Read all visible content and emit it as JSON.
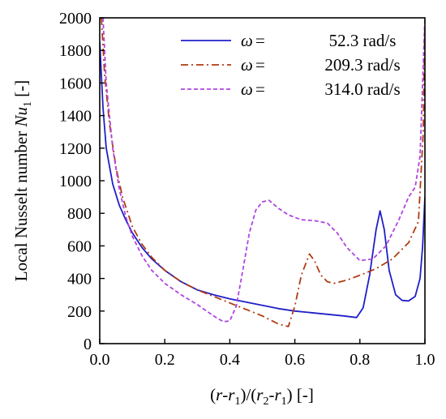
{
  "chart_data": {
    "type": "line",
    "xlabel": "(r-r1)/(r2-r1) [-]",
    "ylabel": "Local Nusselt number Nu1 [-]",
    "xlim": [
      0.0,
      1.0
    ],
    "ylim": [
      0,
      2000
    ],
    "xticks": [
      "0.0",
      "0.2",
      "0.4",
      "0.6",
      "0.8",
      "1.0"
    ],
    "yticks": [
      "0",
      "200",
      "400",
      "600",
      "800",
      "1000",
      "1200",
      "1400",
      "1600",
      "1800",
      "2000"
    ],
    "grid": false,
    "legend_position": "top-right",
    "series": [
      {
        "name": "ω = 52.3 rad/s",
        "symbol": "ω",
        "eq": "=",
        "value": "52.3 rad/s",
        "color": "#1f1fc8",
        "style": "solid",
        "points": [
          [
            0.0,
            1850
          ],
          [
            0.01,
            1450
          ],
          [
            0.02,
            1200
          ],
          [
            0.04,
            980
          ],
          [
            0.06,
            850
          ],
          [
            0.08,
            760
          ],
          [
            0.1,
            680
          ],
          [
            0.13,
            590
          ],
          [
            0.16,
            520
          ],
          [
            0.2,
            450
          ],
          [
            0.25,
            380
          ],
          [
            0.3,
            330
          ],
          [
            0.35,
            300
          ],
          [
            0.4,
            275
          ],
          [
            0.45,
            255
          ],
          [
            0.5,
            235
          ],
          [
            0.55,
            215
          ],
          [
            0.6,
            200
          ],
          [
            0.65,
            190
          ],
          [
            0.7,
            180
          ],
          [
            0.75,
            170
          ],
          [
            0.79,
            160
          ],
          [
            0.81,
            220
          ],
          [
            0.83,
            420
          ],
          [
            0.85,
            700
          ],
          [
            0.862,
            815
          ],
          [
            0.875,
            700
          ],
          [
            0.89,
            450
          ],
          [
            0.91,
            300
          ],
          [
            0.93,
            265
          ],
          [
            0.95,
            262
          ],
          [
            0.97,
            290
          ],
          [
            0.985,
            400
          ],
          [
            0.993,
            600
          ],
          [
            1.0,
            900
          ]
        ]
      },
      {
        "name": "ω = 209.3 rad/s",
        "symbol": "ω",
        "eq": "=",
        "value": "209.3 rad/s",
        "color": "#b03a14",
        "style": "dashdot",
        "points": [
          [
            0.005,
            2000
          ],
          [
            0.015,
            1650
          ],
          [
            0.03,
            1350
          ],
          [
            0.05,
            1080
          ],
          [
            0.07,
            900
          ],
          [
            0.1,
            720
          ],
          [
            0.13,
            610
          ],
          [
            0.16,
            530
          ],
          [
            0.2,
            450
          ],
          [
            0.25,
            380
          ],
          [
            0.3,
            330
          ],
          [
            0.35,
            290
          ],
          [
            0.4,
            250
          ],
          [
            0.45,
            210
          ],
          [
            0.5,
            170
          ],
          [
            0.55,
            120
          ],
          [
            0.58,
            105
          ],
          [
            0.6,
            230
          ],
          [
            0.62,
            420
          ],
          [
            0.645,
            550
          ],
          [
            0.66,
            510
          ],
          [
            0.68,
            420
          ],
          [
            0.7,
            380
          ],
          [
            0.72,
            370
          ],
          [
            0.76,
            390
          ],
          [
            0.8,
            420
          ],
          [
            0.85,
            460
          ],
          [
            0.9,
            520
          ],
          [
            0.95,
            620
          ],
          [
            0.98,
            750
          ],
          [
            0.995,
            1300
          ],
          [
            1.0,
            2000
          ]
        ]
      },
      {
        "name": "ω = 314.0 rad/s",
        "symbol": "ω",
        "eq": "=",
        "value": "314.0 rad/s",
        "color": "#b045e0",
        "style": "dashed",
        "points": [
          [
            0.01,
            2000
          ],
          [
            0.02,
            1600
          ],
          [
            0.04,
            1200
          ],
          [
            0.06,
            950
          ],
          [
            0.08,
            780
          ],
          [
            0.1,
            660
          ],
          [
            0.13,
            540
          ],
          [
            0.16,
            450
          ],
          [
            0.2,
            370
          ],
          [
            0.25,
            300
          ],
          [
            0.3,
            240
          ],
          [
            0.35,
            170
          ],
          [
            0.38,
            135
          ],
          [
            0.4,
            140
          ],
          [
            0.42,
            230
          ],
          [
            0.44,
            450
          ],
          [
            0.46,
            680
          ],
          [
            0.48,
            820
          ],
          [
            0.5,
            870
          ],
          [
            0.52,
            880
          ],
          [
            0.55,
            830
          ],
          [
            0.58,
            790
          ],
          [
            0.62,
            760
          ],
          [
            0.66,
            755
          ],
          [
            0.7,
            740
          ],
          [
            0.73,
            680
          ],
          [
            0.76,
            590
          ],
          [
            0.8,
            510
          ],
          [
            0.84,
            520
          ],
          [
            0.88,
            600
          ],
          [
            0.92,
            760
          ],
          [
            0.95,
            900
          ],
          [
            0.97,
            960
          ],
          [
            0.985,
            1150
          ],
          [
            1.0,
            2000
          ]
        ]
      }
    ]
  }
}
